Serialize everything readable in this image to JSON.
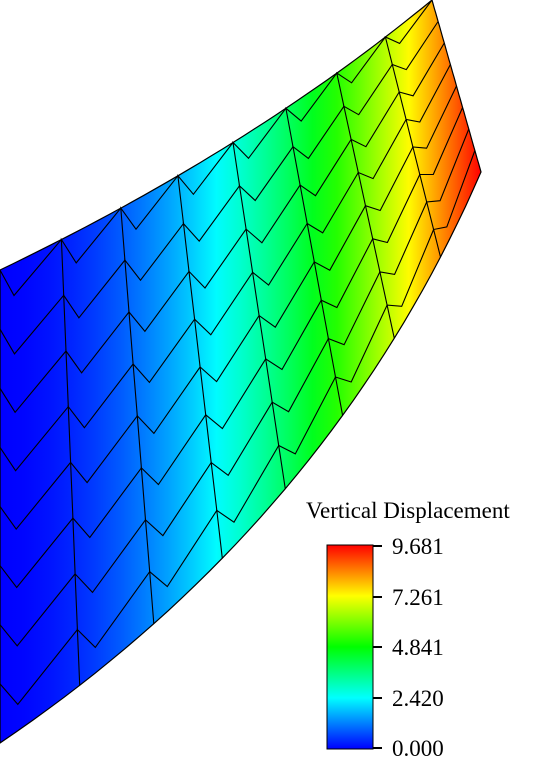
{
  "legend": {
    "title": "Vertical Displacement",
    "ticks": [
      "9.681",
      "7.261",
      "4.841",
      "2.420",
      "0.000"
    ],
    "min": 0.0,
    "max": 9.681
  },
  "colormap": {
    "stops": [
      "#0000ff",
      "#00ffff",
      "#00ff00",
      "#ffff00",
      "#ff0000"
    ]
  },
  "mesh": {
    "columns": 8,
    "rows": 8,
    "max_displacement": 9.681
  }
}
